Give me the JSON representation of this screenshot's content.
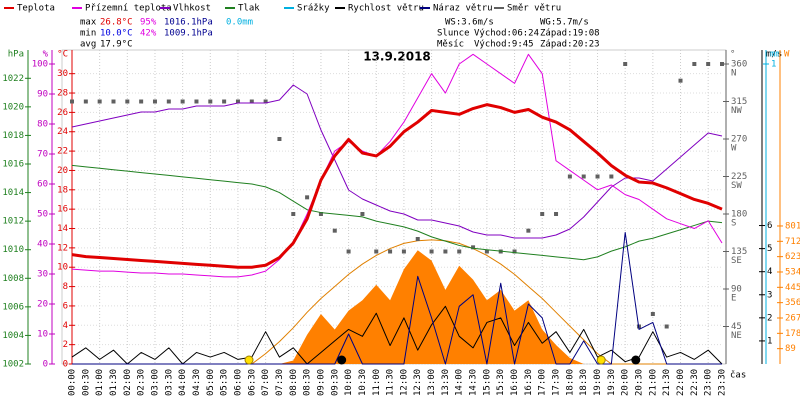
{
  "chart_data": {
    "type": "line",
    "title": "13.9.2018",
    "x_label": "čas",
    "categories": [
      "00:00",
      "00:30",
      "01:00",
      "01:30",
      "02:00",
      "02:30",
      "03:00",
      "03:30",
      "04:00",
      "04:30",
      "05:00",
      "05:30",
      "06:00",
      "06:30",
      "07:00",
      "07:30",
      "08:00",
      "08:30",
      "09:00",
      "09:30",
      "10:00",
      "10:30",
      "11:00",
      "11:30",
      "12:00",
      "12:30",
      "13:00",
      "13:30",
      "14:00",
      "14:30",
      "15:00",
      "15:30",
      "16:00",
      "16:30",
      "17:00",
      "17:30",
      "18:00",
      "18:30",
      "19:00",
      "19:30",
      "20:00",
      "20:30",
      "21:00",
      "21:30",
      "22:00",
      "22:30",
      "23:00",
      "23:30"
    ],
    "legend": [
      {
        "name": "Teplota",
        "color": "#e00000"
      },
      {
        "name": "Přízemní teplota",
        "color": "#e000e0"
      },
      {
        "name": "Vlhkost",
        "color": "#8000c0"
      },
      {
        "name": "Tlak",
        "color": "#208020"
      },
      {
        "name": "Srážky",
        "color": "#00b0e0"
      },
      {
        "name": "Rychlost větru",
        "color": "#000000"
      },
      {
        "name": "Náraz větru",
        "color": "#000080"
      },
      {
        "name": "Směr větru",
        "color": "#606060"
      }
    ],
    "stats": {
      "max": {
        "label": "max",
        "temp": "26.8°C",
        "hum": "95%",
        "press": "1016.1hPa",
        "rain": "0.0mm"
      },
      "min": {
        "label": "min",
        "temp": "10.0°C",
        "hum": "42%",
        "press": "1009.1hPa"
      },
      "avg": {
        "label": "avg",
        "temp": "17.9°C"
      },
      "ws": "WS:3.6m/s",
      "wg": "WG:5.7m/s",
      "sun": {
        "label": "Slunce",
        "rise": "Východ:06:24",
        "set": "Západ:19:08"
      },
      "moon": {
        "label": "Měsíc",
        "rise": "Východ:9:45",
        "set": "Západ:20:23"
      }
    },
    "axes": {
      "hpa": {
        "label": "hPa",
        "lim": [
          1002,
          1023
        ],
        "ticks": [
          1002,
          1004,
          1006,
          1008,
          1010,
          1012,
          1014,
          1016,
          1018,
          1020,
          1022
        ]
      },
      "pct": {
        "label": "%",
        "lim": [
          0,
          100
        ],
        "ticks": [
          0,
          10,
          20,
          30,
          40,
          50,
          60,
          70,
          80,
          90,
          100
        ]
      },
      "temp": {
        "label": "°C",
        "lim": [
          0,
          31
        ],
        "ticks": [
          0,
          2,
          4,
          6,
          8,
          10,
          12,
          14,
          16,
          18,
          20,
          22,
          24,
          26,
          28,
          30
        ]
      },
      "dir": {
        "label": "°",
        "lim": [
          0,
          360
        ],
        "ticks": [
          45,
          90,
          135,
          180,
          225,
          270,
          315,
          360
        ],
        "compass": [
          "NE",
          "E",
          "SE",
          "S",
          "SW",
          "W",
          "NW",
          "N"
        ]
      },
      "ms": {
        "label": "m/s",
        "lim": [
          0,
          13
        ],
        "ticks": [
          1,
          2,
          3,
          4,
          5,
          6
        ]
      },
      "mm": {
        "label": "mm",
        "lim": [
          0,
          1
        ],
        "ticks": [
          1
        ]
      },
      "w": {
        "label": "W",
        "lim": [
          0,
          1741
        ],
        "ticks": [
          89,
          178,
          267,
          356,
          445,
          534,
          623,
          712,
          801
        ]
      }
    },
    "series": [
      {
        "axis": "w",
        "color": "#ff8000",
        "style": "area",
        "values": [
          0,
          0,
          0,
          0,
          0,
          0,
          0,
          0,
          0,
          0,
          0,
          0,
          0,
          0,
          0,
          0,
          20,
          170,
          290,
          200,
          310,
          370,
          460,
          370,
          550,
          660,
          600,
          430,
          570,
          490,
          370,
          430,
          310,
          370,
          200,
          110,
          35,
          0,
          0,
          0,
          0,
          0,
          0,
          0,
          0,
          0,
          0,
          0
        ]
      },
      {
        "axis": "w",
        "color": "#e08000",
        "style": "line",
        "values": [
          0,
          0,
          0,
          0,
          0,
          0,
          0,
          0,
          0,
          0,
          0,
          0,
          0,
          0,
          60,
          130,
          210,
          300,
          380,
          450,
          520,
          580,
          630,
          670,
          700,
          715,
          720,
          715,
          700,
          670,
          630,
          580,
          520,
          450,
          380,
          300,
          220,
          140,
          60,
          0,
          0,
          0,
          0,
          0,
          0,
          0,
          0,
          0
        ]
      },
      {
        "axis": "dir",
        "color": "#606060",
        "style": "squares",
        "values": [
          315,
          315,
          315,
          315,
          315,
          315,
          315,
          315,
          315,
          315,
          315,
          315,
          315,
          315,
          315,
          270,
          180,
          200,
          180,
          160,
          135,
          180,
          135,
          135,
          135,
          150,
          135,
          135,
          135,
          140,
          135,
          135,
          135,
          160,
          180,
          180,
          225,
          225,
          225,
          225,
          360,
          45,
          60,
          45,
          340,
          360,
          360,
          360
        ]
      },
      {
        "axis": "hpa",
        "color": "#208020",
        "style": "line",
        "values": [
          1015.9,
          1015.8,
          1015.7,
          1015.6,
          1015.5,
          1015.4,
          1015.3,
          1015.2,
          1015.1,
          1015.0,
          1014.9,
          1014.8,
          1014.7,
          1014.6,
          1014.4,
          1014.0,
          1013.4,
          1012.8,
          1012.6,
          1012.5,
          1012.4,
          1012.3,
          1012.0,
          1011.8,
          1011.6,
          1011.3,
          1010.9,
          1010.6,
          1010.3,
          1010.1,
          1010.0,
          1009.9,
          1009.8,
          1009.7,
          1009.6,
          1009.5,
          1009.4,
          1009.3,
          1009.5,
          1009.9,
          1010.2,
          1010.6,
          1010.8,
          1011.1,
          1011.4,
          1011.7,
          1012.0,
          1011.9
        ]
      },
      {
        "axis": "pct",
        "color": "#8000c0",
        "style": "line",
        "values": [
          79,
          80,
          81,
          82,
          83,
          84,
          84,
          85,
          85,
          86,
          86,
          86,
          87,
          87,
          87,
          88,
          93,
          90,
          78,
          68,
          58,
          55,
          53,
          51,
          50,
          48,
          48,
          47,
          46,
          44,
          43,
          43,
          42,
          42,
          42,
          43,
          45,
          49,
          54,
          59,
          62,
          62,
          61,
          65,
          69,
          73,
          77,
          76
        ]
      },
      {
        "axis": "temp",
        "color": "#e000e0",
        "style": "line",
        "values": [
          9.8,
          9.7,
          9.6,
          9.6,
          9.5,
          9.4,
          9.4,
          9.3,
          9.3,
          9.2,
          9.1,
          9.0,
          9.0,
          9.2,
          9.6,
          10.8,
          12.5,
          15.5,
          19,
          22,
          23,
          22,
          21.5,
          23,
          25,
          27.5,
          30,
          28,
          31,
          32,
          31,
          30,
          29,
          32,
          30,
          21,
          20,
          19,
          18,
          18.5,
          17.5,
          17,
          16,
          15,
          14.5,
          14,
          14.8,
          12.5
        ]
      },
      {
        "axis": "temp",
        "color": "#e00000",
        "style": "thick",
        "values": [
          11.3,
          11.1,
          11.0,
          10.9,
          10.8,
          10.7,
          10.6,
          10.5,
          10.4,
          10.3,
          10.2,
          10.1,
          10.0,
          10.0,
          10.2,
          11.0,
          12.5,
          15,
          19,
          21.5,
          23.2,
          21.8,
          21.5,
          22.5,
          24.0,
          25.0,
          26.2,
          26.0,
          25.8,
          26.4,
          26.8,
          26.5,
          26.0,
          26.3,
          25.5,
          25.0,
          24.2,
          23.0,
          21.8,
          20.5,
          19.5,
          18.8,
          18.7,
          18.2,
          17.6,
          17.0,
          16.6,
          16.0
        ]
      },
      {
        "axis": "ms",
        "color": "#000000",
        "style": "line",
        "values": [
          0.3,
          0.7,
          0.2,
          0.6,
          0,
          0.5,
          0.2,
          0.7,
          0,
          0.5,
          0.3,
          0.5,
          0.2,
          0.3,
          1.4,
          0.3,
          0.7,
          0,
          0.5,
          1.0,
          1.5,
          1.2,
          2.2,
          0.8,
          2.0,
          0.6,
          1.7,
          2.5,
          1.2,
          0.7,
          1.8,
          2.0,
          0.8,
          1.8,
          0.9,
          1.4,
          0.5,
          1.5,
          0.3,
          0.6,
          0.1,
          0.3,
          1.4,
          0.3,
          0.5,
          0.2,
          0.6,
          0
        ]
      },
      {
        "axis": "ms",
        "color": "#000080",
        "style": "line",
        "values": [
          0,
          0,
          0,
          0,
          0,
          0,
          0,
          0,
          0,
          0,
          0,
          0,
          0,
          0,
          0,
          0,
          0,
          0,
          0,
          0,
          1.3,
          0,
          0,
          0,
          0,
          3.8,
          2.0,
          0,
          2.5,
          3.0,
          0,
          3.5,
          0,
          2.6,
          2.0,
          0,
          0,
          1.0,
          0,
          0,
          5.7,
          1.5,
          1.8,
          0,
          0,
          0,
          0,
          0
        ]
      }
    ]
  }
}
